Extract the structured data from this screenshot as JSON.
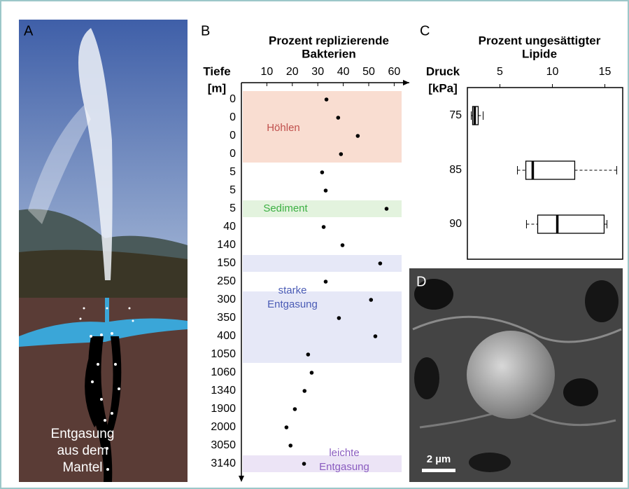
{
  "panels": {
    "a": {
      "label": "A",
      "caption": [
        "Entgasung",
        "aus dem",
        "Mantel"
      ]
    },
    "d": {
      "label": "D",
      "scale_bar": "2 µm"
    }
  },
  "chart_data": [
    {
      "type": "dot",
      "panel_label": "B",
      "title": [
        "Prozent replizierende",
        "Bakterien"
      ],
      "y_label": [
        "Tiefe",
        "[m]"
      ],
      "categories": [
        "0",
        "0",
        "0",
        "0",
        "5",
        "5",
        "5",
        "40",
        "140",
        "150",
        "250",
        "300",
        "350",
        "400",
        "1050",
        "1060",
        "1340",
        "1900",
        "2000",
        "3050",
        "3140"
      ],
      "values": [
        33.4,
        38,
        45.7,
        39.1,
        31.7,
        33.1,
        57,
        32.3,
        39.7,
        54.5,
        33.1,
        50.9,
        38.3,
        52.6,
        26.2,
        27.6,
        24.8,
        21,
        17.7,
        19.3,
        24.6
      ],
      "color": "#000000",
      "xlim": [
        0,
        66
      ],
      "xticks": [
        10,
        20,
        30,
        40,
        50,
        60
      ],
      "regions": [
        {
          "label": [
            "Höhlen"
          ],
          "color": "#f9ddd1",
          "text_color": "#c0504d"
        },
        {
          "label": [
            "Sediment"
          ],
          "color": "#e3f3de",
          "text_color": "#3cb043"
        },
        {
          "color": "#e6e8f7"
        },
        {
          "label": [
            "starke",
            "Entgasung"
          ],
          "color": "#e6e8f7",
          "text_color": "#4a5bb5"
        },
        {
          "label": [
            "leichte",
            "Entgasung"
          ],
          "color": "#ece4f6",
          "text_color": "#8a5cc0"
        }
      ]
    },
    {
      "type": "box",
      "panel_label": "C",
      "title": [
        "Prozent ungesättigter",
        "Lipide"
      ],
      "y_label": [
        "Druck",
        "[kPa]"
      ],
      "categories": [
        "75",
        "85",
        "90"
      ],
      "boxes": [
        {
          "min": 2.27,
          "q1": 2.4,
          "median": 2.6,
          "q3": 2.93,
          "max": 3.4
        },
        {
          "min": 6.67,
          "q1": 7.47,
          "median": 8.13,
          "q3": 12.13,
          "max": 16.13
        },
        {
          "min": 7.53,
          "q1": 8.6,
          "median": 10.47,
          "q3": 14.93,
          "max": 15.2
        }
      ],
      "color": "#000000",
      "xlim": [
        1.9,
        16.7
      ],
      "xticks": [
        5,
        10,
        15
      ]
    }
  ]
}
